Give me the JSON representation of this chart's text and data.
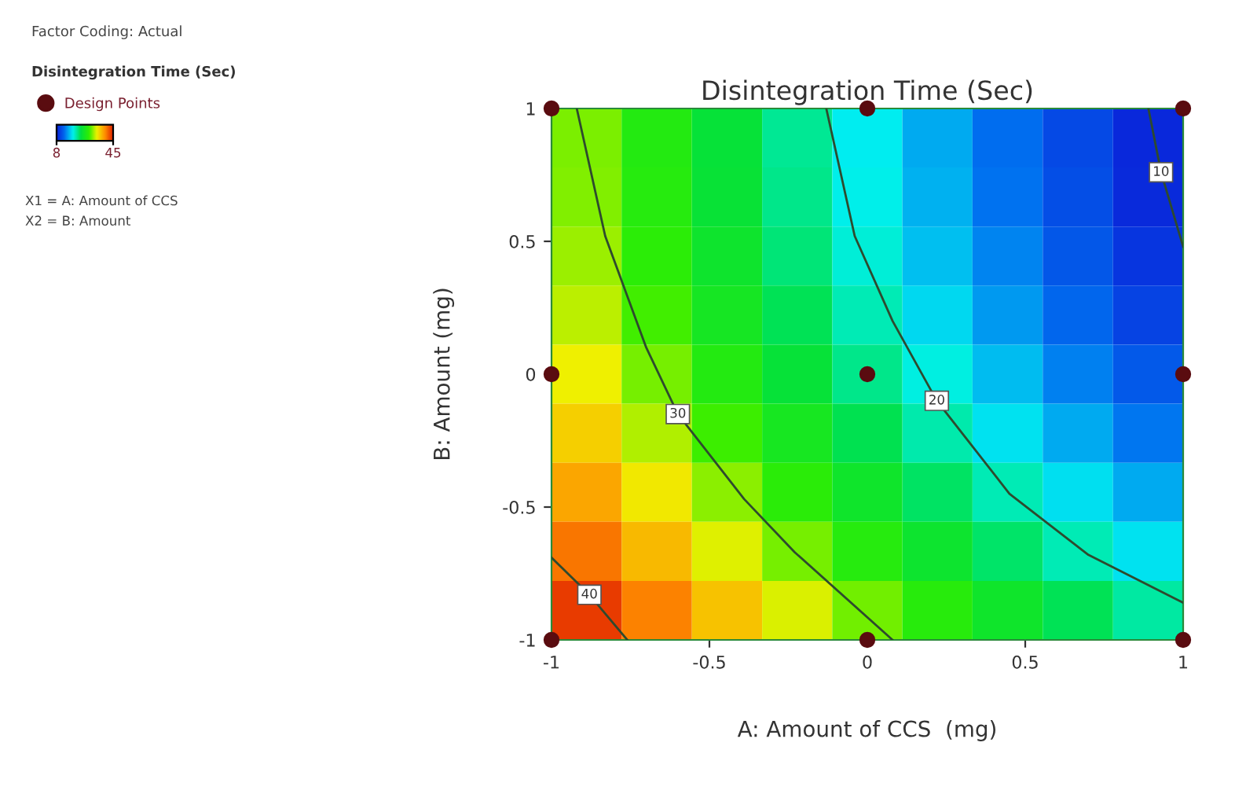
{
  "chart_data": {
    "type": "heatmap",
    "title": "Disintegration Time (Sec)",
    "xlabel": "A: Amount of CCS  (mg)",
    "ylabel": "B: Amount (mg)",
    "clabel": "Disintegration Time (Sec)",
    "x": [
      -0.889,
      -0.667,
      -0.444,
      -0.222,
      0,
      0.222,
      0.444,
      0.667,
      0.889
    ],
    "cells": [
      [
        31.2,
        27.8,
        24.5,
        21.4,
        18.5,
        15.8,
        13.2,
        10.8,
        8.6
      ],
      [
        31.4,
        28.0,
        24.7,
        21.7,
        18.7,
        16.0,
        13.4,
        11.1,
        8.8
      ],
      [
        32.1,
        28.6,
        25.4,
        22.3,
        19.4,
        16.6,
        14.1,
        11.7,
        9.5
      ],
      [
        33.0,
        29.6,
        26.3,
        23.3,
        20.3,
        17.6,
        15.0,
        12.7,
        10.4
      ],
      [
        34.4,
        31.0,
        27.7,
        24.6,
        21.7,
        19.0,
        16.4,
        14.0,
        11.8
      ],
      [
        36.1,
        32.7,
        29.4,
        26.4,
        23.4,
        20.7,
        18.1,
        15.8,
        13.5
      ],
      [
        38.3,
        34.8,
        31.6,
        28.5,
        25.6,
        22.8,
        20.3,
        17.9,
        15.7
      ],
      [
        40.7,
        37.3,
        34.0,
        31.0,
        28.0,
        25.3,
        22.7,
        20.4,
        18.1
      ],
      [
        43.6,
        40.2,
        36.9,
        33.8,
        30.9,
        28.2,
        25.6,
        23.2,
        21.0
      ]
    ],
    "clim": [
      8,
      45
    ],
    "cticks": [
      8,
      45
    ],
    "xlim": [
      -1,
      1
    ],
    "ylim": [
      -1,
      1
    ],
    "xticks": [
      -1,
      -0.5,
      0,
      0.5,
      1
    ],
    "yticks": [
      -1,
      -0.5,
      0,
      0.5,
      1
    ],
    "series": [
      {
        "name": "Design Points",
        "type": "scatter",
        "marker": "circle",
        "color": "#5a0c10",
        "x": [
          -1,
          0,
          1,
          -1,
          0,
          1,
          -1,
          0,
          1
        ],
        "values": [
          1,
          1,
          1,
          0,
          0,
          0,
          -1,
          -1,
          -1
        ]
      },
      {
        "name": "10",
        "type": "line",
        "color": "#2e4a2e",
        "x": [
          0.89,
          0.93,
          1
        ],
        "values": [
          1,
          0.76,
          0.48
        ]
      },
      {
        "name": "20",
        "type": "line",
        "color": "#2e4a2e",
        "x": [
          -0.13,
          -0.04,
          0.08,
          0.22,
          0.45,
          0.7,
          1
        ],
        "values": [
          1,
          0.52,
          0.2,
          -0.1,
          -0.45,
          -0.68,
          -0.86
        ]
      },
      {
        "name": "30",
        "type": "line",
        "color": "#2e4a2e",
        "x": [
          -0.92,
          -0.83,
          -0.7,
          -0.6,
          -0.39,
          -0.23,
          0.08
        ],
        "values": [
          1,
          0.52,
          0.1,
          -0.15,
          -0.47,
          -0.67,
          -1
        ]
      },
      {
        "name": "40",
        "type": "line",
        "color": "#2e4a2e",
        "x": [
          -1,
          -0.88,
          -0.76
        ],
        "values": [
          -0.69,
          -0.83,
          -1
        ]
      }
    ],
    "legend": "left",
    "grid": false,
    "annotations": [
      "Factor Coding: Actual",
      "X1 = A: Amount of CCS",
      "X2 = B: Amount"
    ]
  }
}
